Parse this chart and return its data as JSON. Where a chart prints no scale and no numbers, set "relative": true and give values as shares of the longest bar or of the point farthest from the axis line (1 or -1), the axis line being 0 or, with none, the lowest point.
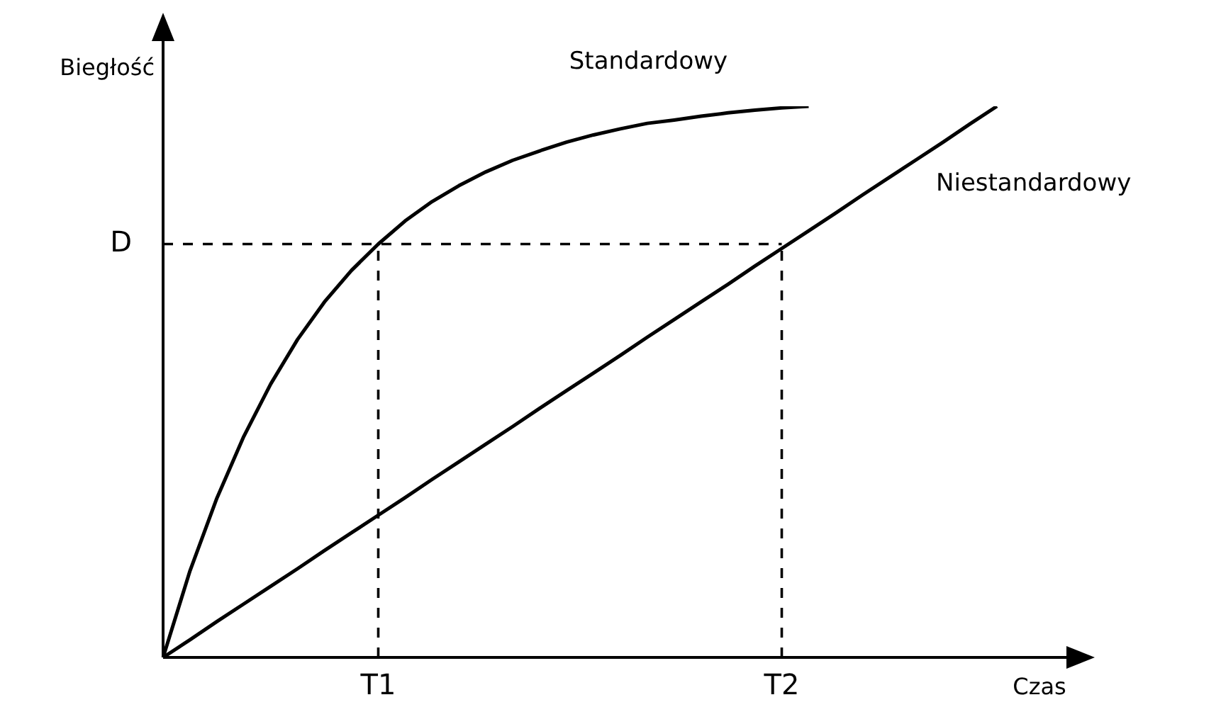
{
  "chart_data": {
    "type": "line",
    "relative": true,
    "xlabel": "Czas",
    "ylabel": "Biegłość",
    "marker": "none",
    "legend": false,
    "categories": [
      null,
      null,
      null,
      null,
      null,
      null,
      null,
      null,
      "T1",
      null,
      null,
      null,
      null,
      null,
      null,
      null,
      null,
      null,
      null,
      null,
      null,
      null,
      null,
      "T2",
      null,
      null,
      null,
      null,
      null,
      null,
      null,
      null
    ],
    "series": [
      {
        "name": "Standardowy",
        "color": "#000000",
        "values": [
          0,
          0.157,
          0.289,
          0.401,
          0.496,
          0.577,
          0.645,
          0.702,
          0.75,
          0.792,
          0.827,
          0.856,
          0.881,
          0.902,
          0.919,
          0.935,
          0.948,
          0.959,
          0.969,
          0.975,
          0.982,
          0.988,
          0.993,
          0.997,
          1,
          null,
          null,
          null,
          null,
          null,
          null,
          null
        ]
      },
      {
        "name": "Niestandardowy",
        "color": "#000000",
        "values": [
          0,
          0.032,
          0.065,
          0.097,
          0.129,
          0.161,
          0.194,
          0.226,
          0.258,
          0.29,
          0.323,
          0.355,
          0.387,
          0.419,
          0.452,
          0.484,
          0.516,
          0.548,
          0.581,
          0.613,
          0.645,
          0.677,
          0.71,
          0.742,
          0.774,
          0.806,
          0.839,
          0.871,
          0.903,
          0.935,
          0.968,
          1
        ]
      }
    ],
    "ref_lines": [
      {
        "axis": "y",
        "value": 0.75,
        "label": "D",
        "line_style": "dashed",
        "color": "#000000"
      },
      {
        "axis": "x",
        "value": "T1",
        "line_style": "dashed",
        "color": "#000000"
      },
      {
        "axis": "x",
        "value": "T2",
        "line_style": "dashed",
        "color": "#000000"
      }
    ]
  }
}
